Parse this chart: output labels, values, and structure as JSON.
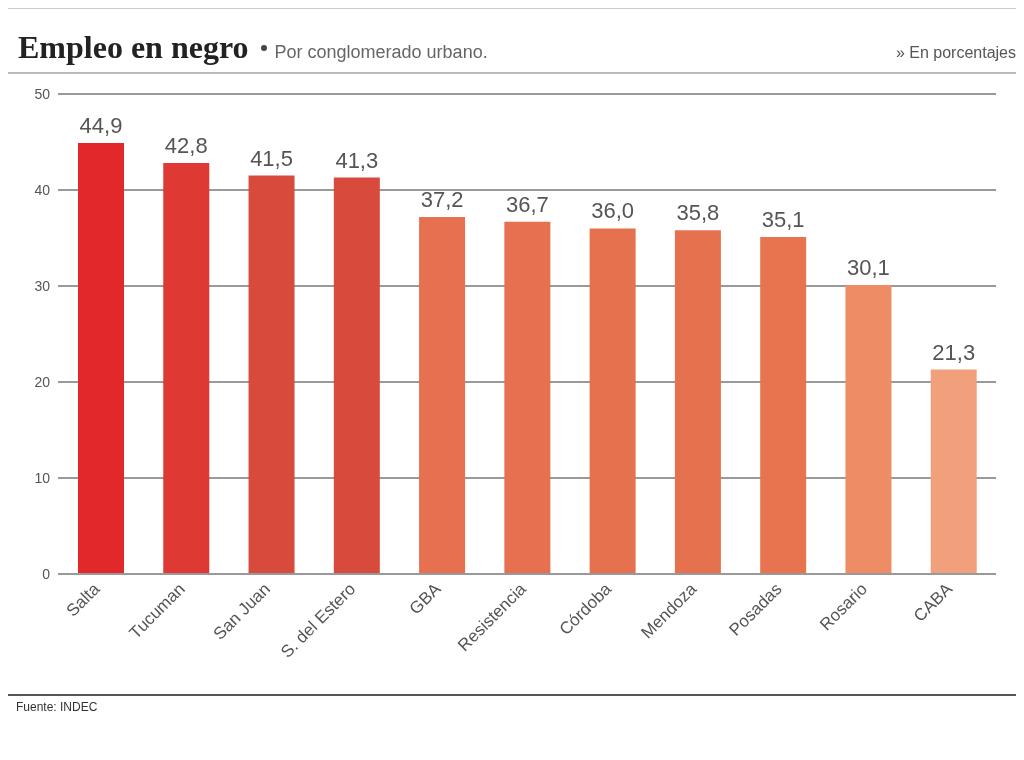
{
  "chart_data": {
    "type": "bar",
    "title": "Empleo en negro",
    "subtitle": "Por conglomerado urbano.",
    "annotations": [
      "» En porcentajes",
      "Fuente: INDEC"
    ],
    "categories": [
      "Salta",
      "Tucuman",
      "San Juan",
      "S. del Estero",
      "GBA",
      "Resistencia",
      "Córdoba",
      "Mendoza",
      "Posadas",
      "Rosario",
      "CABA"
    ],
    "values": [
      44.9,
      42.8,
      41.5,
      41.3,
      37.2,
      36.7,
      36.0,
      35.8,
      35.1,
      30.1,
      21.3
    ],
    "value_labels": [
      "44,9",
      "42,8",
      "41,5",
      "41,3",
      "37,2",
      "36,7",
      "36,0",
      "35,8",
      "35,1",
      "30,1",
      "21,3"
    ],
    "colors": [
      "#e3282b",
      "#de3a33",
      "#d84a3c",
      "#d84a3c",
      "#e6704f",
      "#e6704f",
      "#e6714f",
      "#e6714f",
      "#e8744f",
      "#ee8c66",
      "#f2a07c"
    ],
    "ylim": [
      0,
      50
    ],
    "yticks": [
      0,
      10,
      20,
      30,
      40,
      50
    ],
    "grid": "y"
  }
}
